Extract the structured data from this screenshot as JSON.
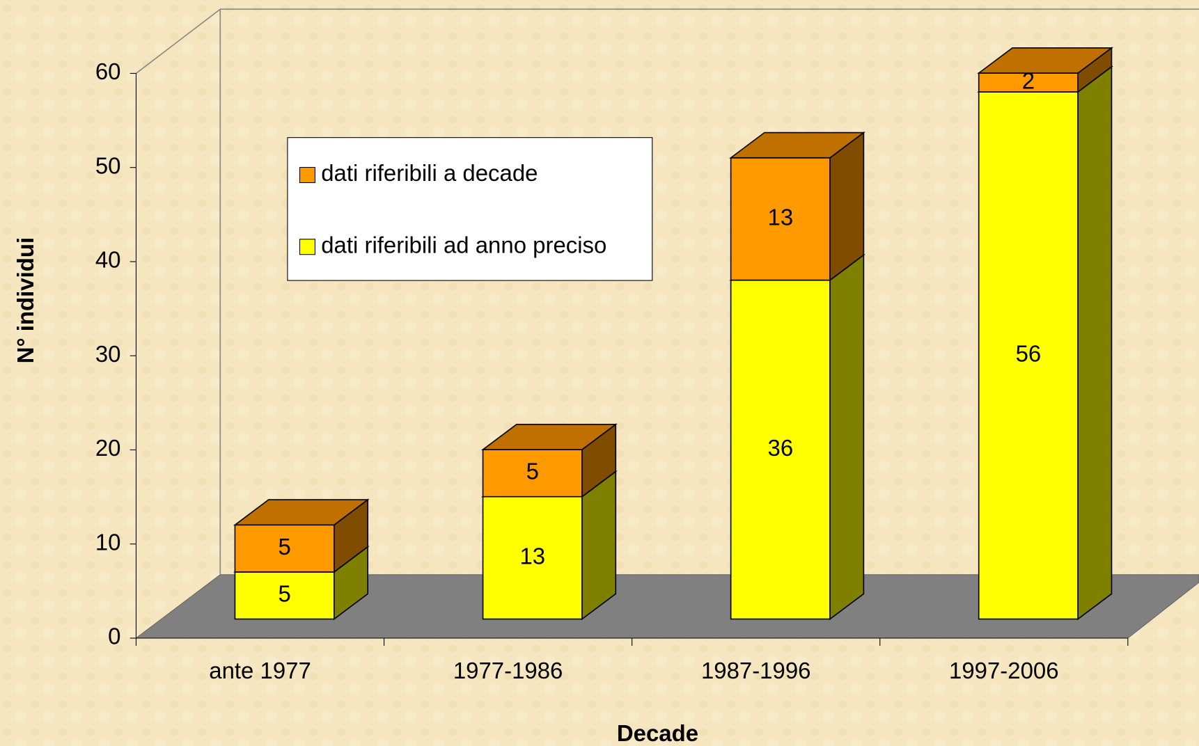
{
  "chart_data": {
    "type": "bar3d_stacked",
    "x_label": "Decade",
    "y_label": "N° individui",
    "categories": [
      "ante 1977",
      "1977-1986",
      "1987-1996",
      "1997-2006"
    ],
    "series": [
      {
        "name": "dati riferibili ad anno preciso",
        "color": "#ffff00",
        "side_color": "#808000",
        "values": [
          5,
          13,
          36,
          56
        ]
      },
      {
        "name": "dati riferibili a decade",
        "color": "#ff9900",
        "side_color": "#804c00",
        "top_color": "#c07000",
        "values": [
          5,
          5,
          13,
          2
        ]
      }
    ],
    "ylim": [
      0,
      60
    ],
    "yticks": [
      0,
      10,
      20,
      30,
      40,
      50,
      60
    ],
    "legend": "upper-left"
  }
}
